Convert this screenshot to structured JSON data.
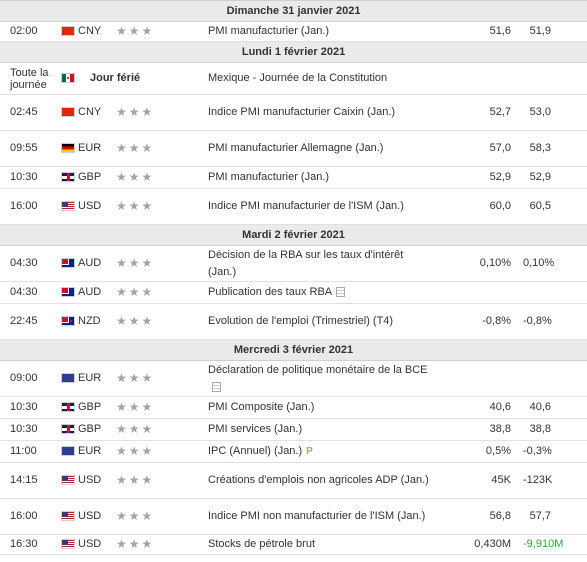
{
  "importance_stars": "★★★",
  "days": {
    "d1": "Dimanche 31 janvier 2021",
    "d2": "Lundi 1 février 2021",
    "d3": "Mardi 2 février 2021",
    "d4": "Mercredi 3 février 2021"
  },
  "rows": {
    "r1": {
      "time": "02:00",
      "currency": "CNY",
      "flag": "china-flag",
      "event": "PMI manufacturier (Jan.)",
      "actual": "51,6",
      "forecast": "51,9"
    },
    "h1": {
      "time": "Toute la journée",
      "flag": "mexico-flag",
      "label": "Jour férié",
      "event": "Mexique - Journée de la Constitution"
    },
    "r2": {
      "time": "02:45",
      "currency": "CNY",
      "flag": "china-flag",
      "event": "Indice PMI manufacturier Caixin (Jan.)",
      "actual": "52,7",
      "forecast": "53,0"
    },
    "r3": {
      "time": "09:55",
      "currency": "EUR",
      "flag": "germany-flag",
      "event": "PMI manufacturier Allemagne (Jan.)",
      "actual": "57,0",
      "forecast": "58,3"
    },
    "r4": {
      "time": "10:30",
      "currency": "GBP",
      "flag": "uk-flag",
      "event": "PMI manufacturier (Jan.)",
      "actual": "52,9",
      "forecast": "52,9"
    },
    "r5": {
      "time": "16:00",
      "currency": "USD",
      "flag": "us-flag",
      "event": "Indice PMI manufacturier de l'ISM (Jan.)",
      "actual": "60,0",
      "forecast": "60,5"
    },
    "r6": {
      "time": "04:30",
      "currency": "AUD",
      "flag": "australia-flag",
      "event": "Décision de la RBA sur les taux d'intérêt (Jan.)",
      "actual": "0,10%",
      "forecast": "0,10%"
    },
    "r7": {
      "time": "04:30",
      "currency": "AUD",
      "flag": "australia-flag",
      "event": "Publication des taux RBA",
      "actual": "",
      "forecast": ""
    },
    "r8": {
      "time": "22:45",
      "currency": "NZD",
      "flag": "new-zealand-flag",
      "event": "Evolution de l'emploi (Trimestriel) (T4)",
      "actual": "-0,8%",
      "forecast": "-0,8%"
    },
    "r9": {
      "time": "09:00",
      "currency": "EUR",
      "flag": "eu-flag",
      "event": "Déclaration de politique monétaire de la BCE",
      "actual": "",
      "forecast": ""
    },
    "r10": {
      "time": "10:30",
      "currency": "GBP",
      "flag": "uk-flag",
      "event": "PMI Composite (Jan.)",
      "actual": "40,6",
      "forecast": "40,6"
    },
    "r11": {
      "time": "10:30",
      "currency": "GBP",
      "flag": "uk-flag",
      "event": "PMI services (Jan.)",
      "actual": "38,8",
      "forecast": "38,8"
    },
    "r12": {
      "time": "11:00",
      "currency": "EUR",
      "flag": "eu-flag",
      "event": "IPC (Annuel) (Jan.)",
      "actual": "0,5%",
      "forecast": "-0,3%"
    },
    "r13": {
      "time": "14:15",
      "currency": "USD",
      "flag": "us-flag",
      "event": "Créations d'emplois non agricoles ADP (Jan.)",
      "actual": "45K",
      "forecast": "-123K"
    },
    "r14": {
      "time": "16:00",
      "currency": "USD",
      "flag": "us-flag",
      "event": "Indice PMI non manufacturier de l'ISM (Jan.)",
      "actual": "56,8",
      "forecast": "57,7"
    },
    "r15": {
      "time": "16:30",
      "currency": "USD",
      "flag": "us-flag",
      "event": "Stocks de pétrole brut",
      "actual": "0,430M",
      "forecast": "-9,910M",
      "forecast_color": "#3ea03e"
    }
  },
  "icons": {
    "document": "document-icon",
    "preliminary": "P"
  }
}
